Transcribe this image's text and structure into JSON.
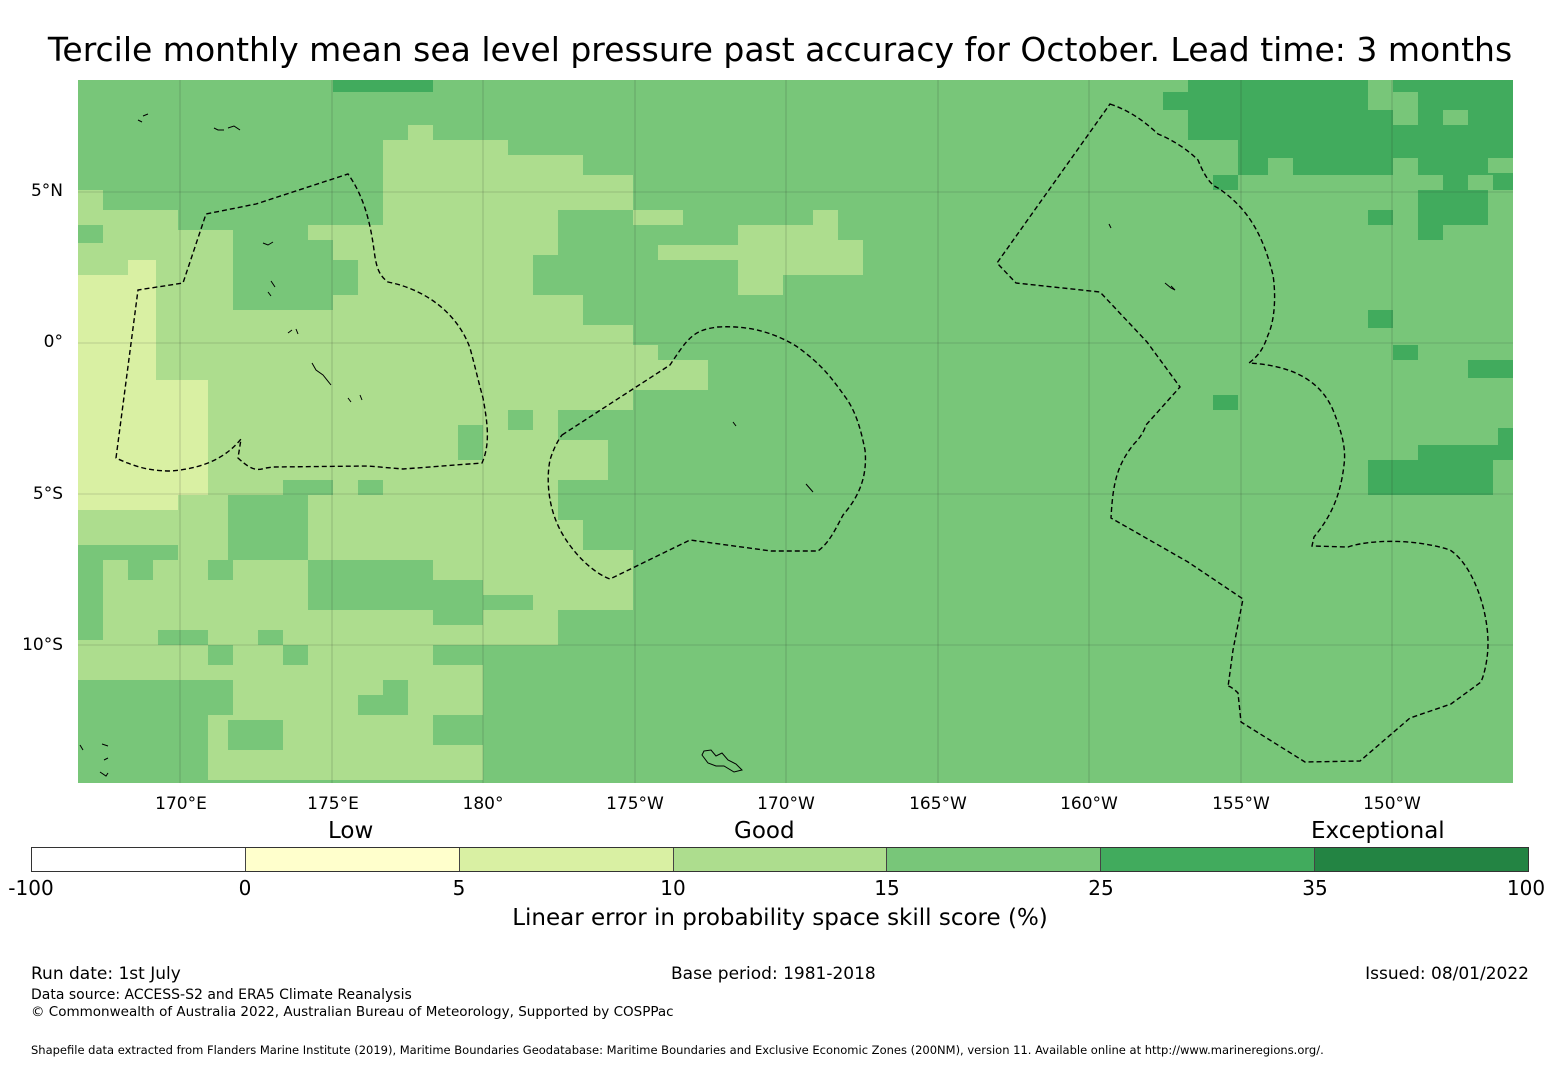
{
  "title": "Tercile monthly mean sea level pressure past accuracy for October. Lead time: 3 months",
  "map": {
    "lat_labels": [
      "5°N",
      "0°",
      "5°S",
      "10°S"
    ],
    "lon_labels": [
      "170°E",
      "175°E",
      "180°",
      "175°W",
      "170°W",
      "165°W",
      "160°W",
      "155°W",
      "150°W"
    ],
    "background_color": "#78c679"
  },
  "legend": {
    "categories": [
      "Low",
      "Good",
      "Exceptional"
    ],
    "ticks": [
      "-100",
      "0",
      "5",
      "10",
      "15",
      "25",
      "35",
      "100"
    ],
    "colors": [
      "#ffffff",
      "#ffffcc",
      "#d9f0a3",
      "#addd8e",
      "#78c679",
      "#41ab5d",
      "#238443"
    ],
    "caption": "Linear error in probability space skill score (%)"
  },
  "footer": {
    "run_date": "Run date: 1st July",
    "base_period": "Base period: 1981-2018",
    "issued": "Issued: 08/01/2022",
    "data_source": "Data source: ACCESS-S2 and ERA5 Climate Reanalysis",
    "copyright": "© Commonwealth of Australia 2022, Australian Bureau of Meteorology, Supported by COSPPac",
    "shapefile": "Shapefile data extracted from Flanders Marine Institute (2019), Maritime Boundaries Geodatabase: Maritime Boundaries and Exclusive Economic Zones (200NM), version 11. Available online at http://www.marineregions.org/."
  }
}
